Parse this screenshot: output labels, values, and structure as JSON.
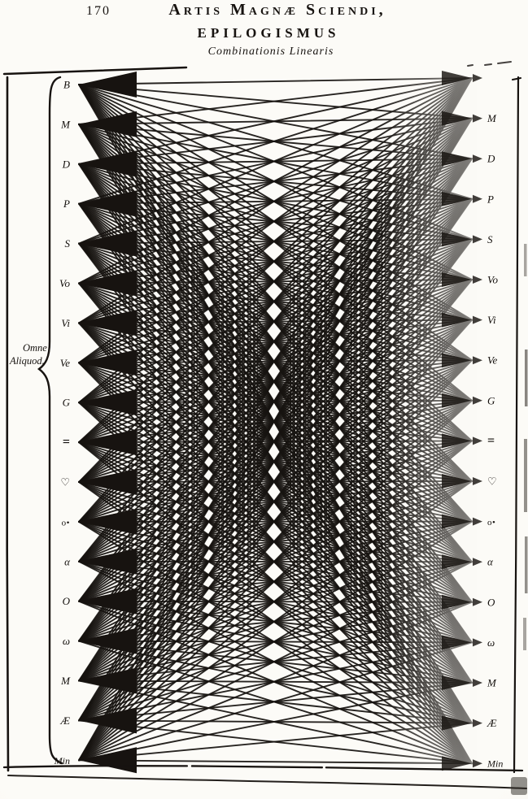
{
  "page": {
    "number": "170",
    "running_title": "Artis Magnæ Sciendi,",
    "section_title": "EPILOGISMUS",
    "figure_caption": "Combinationis Linearis",
    "bracket_label": {
      "line1": "Omne",
      "line2": "Aliquod."
    },
    "colors": {
      "ink": "#171310",
      "paper": "#faf8f3"
    }
  },
  "figure": {
    "left_symbols": [
      "B",
      "M",
      "D",
      "P",
      "S",
      "Vo",
      "Vi",
      "Ve",
      "G",
      "=",
      "♡",
      "o•",
      "α",
      "O",
      "ω",
      "M",
      "Æ",
      "Min"
    ],
    "right_symbols": [
      "",
      "M",
      "D",
      "P",
      "S",
      "Vo",
      "Vi",
      "Ve",
      "G",
      "=",
      "♡",
      "o•",
      "α",
      "O",
      "ω",
      "M",
      "Æ",
      "Min"
    ],
    "node_count_per_side": 18,
    "connection_pattern": "complete-bipartite"
  }
}
